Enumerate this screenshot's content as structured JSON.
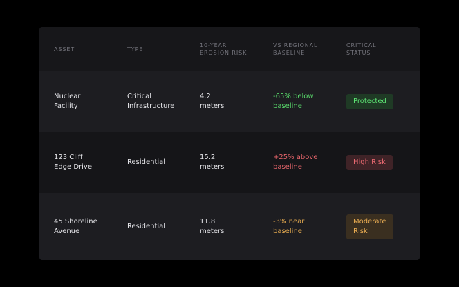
{
  "table": {
    "headers": [
      "ASSET",
      "TYPE",
      "10-YEAR\nEROSION RISK",
      "VS REGIONAL\nBASELINE",
      "CRITICAL\nSTATUS"
    ],
    "rows": [
      {
        "asset": "Nuclear\nFacility",
        "type": "Critical\nInfrastructure",
        "risk": "4.2\nmeters",
        "baseline": "-65% below\nbaseline",
        "status": "Protected"
      },
      {
        "asset": "123 Cliff\nEdge Drive",
        "type": "Residential",
        "risk": "15.2\nmeters",
        "baseline": "+25% above\nbaseline",
        "status": "High Risk"
      },
      {
        "asset": "45 Shoreline\nAvenue",
        "type": "Residential",
        "risk": "11.8\nmeters",
        "baseline": "-3% near\nbaseline",
        "status": "Moderate\nRisk"
      }
    ]
  },
  "colors": {
    "protected": "#5ee474",
    "high_risk": "#ec6a72",
    "moderate": "#e9ac52"
  }
}
